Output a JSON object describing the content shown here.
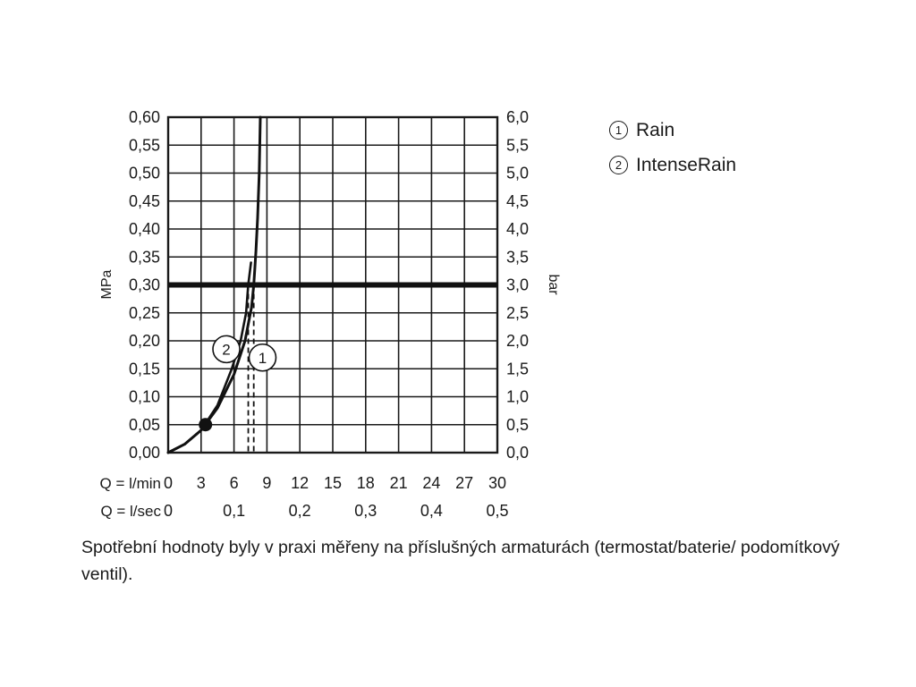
{
  "chart_data": {
    "type": "line",
    "ylabel_left": "MPa",
    "ylabel_right": "bar",
    "xlim": [
      0,
      30
    ],
    "ylim": [
      0,
      0.6
    ],
    "grid": true,
    "yticks_left": [
      "0,00",
      "0,05",
      "0,10",
      "0,15",
      "0,20",
      "0,25",
      "0,30",
      "0,35",
      "0,40",
      "0,45",
      "0,50",
      "0,55",
      "0,60"
    ],
    "yticks_right": [
      "0,0",
      "0,5",
      "1,0",
      "1,5",
      "2,0",
      "2,5",
      "3,0",
      "3,5",
      "4,0",
      "4,5",
      "5,0",
      "5,5",
      "6,0"
    ],
    "x_lmin_label": "Q = l/min",
    "x_lmin_ticks": [
      "0",
      "3",
      "6",
      "9",
      "12",
      "15",
      "18",
      "21",
      "24",
      "27",
      "30"
    ],
    "x_lsec_label": "Q = l/sec",
    "x_lsec_ticks": [
      {
        "lmin": 0,
        "label": "0"
      },
      {
        "lmin": 6,
        "label": "0,1"
      },
      {
        "lmin": 12,
        "label": "0,2"
      },
      {
        "lmin": 18,
        "label": "0,3"
      },
      {
        "lmin": 24,
        "label": "0,4"
      },
      {
        "lmin": 30,
        "label": "0,5"
      }
    ],
    "reference_pressure_mpa": 0.3,
    "series": [
      {
        "name": "Rain",
        "marker": "1",
        "label_at": [
          8.6,
          0.17
        ],
        "dash_at": 7.8,
        "points": [
          [
            0,
            0
          ],
          [
            1.5,
            0.015
          ],
          [
            3,
            0.04
          ],
          [
            4.5,
            0.08
          ],
          [
            6,
            0.14
          ],
          [
            7,
            0.2
          ],
          [
            7.6,
            0.26
          ],
          [
            7.8,
            0.3
          ],
          [
            8.0,
            0.36
          ],
          [
            8.15,
            0.42
          ],
          [
            8.3,
            0.5
          ],
          [
            8.4,
            0.6
          ]
        ]
      },
      {
        "name": "IntenseRain",
        "marker": "2",
        "label_at": [
          5.3,
          0.185
        ],
        "dash_at": 7.3,
        "points": [
          [
            0,
            0
          ],
          [
            1.5,
            0.015
          ],
          [
            3,
            0.04
          ],
          [
            4.5,
            0.085
          ],
          [
            5.8,
            0.15
          ],
          [
            6.6,
            0.2
          ],
          [
            7.1,
            0.25
          ],
          [
            7.3,
            0.3
          ],
          [
            7.55,
            0.34
          ]
        ]
      }
    ],
    "marked_point": [
      3.4,
      0.05
    ]
  },
  "legend": [
    {
      "num": "1",
      "label": "Rain"
    },
    {
      "num": "2",
      "label": "IntenseRain"
    }
  ],
  "footnote": "Spotřební hodnoty byly v praxi měřeny na příslušných armaturách (termostat/baterie/ podomítkový ventil)."
}
